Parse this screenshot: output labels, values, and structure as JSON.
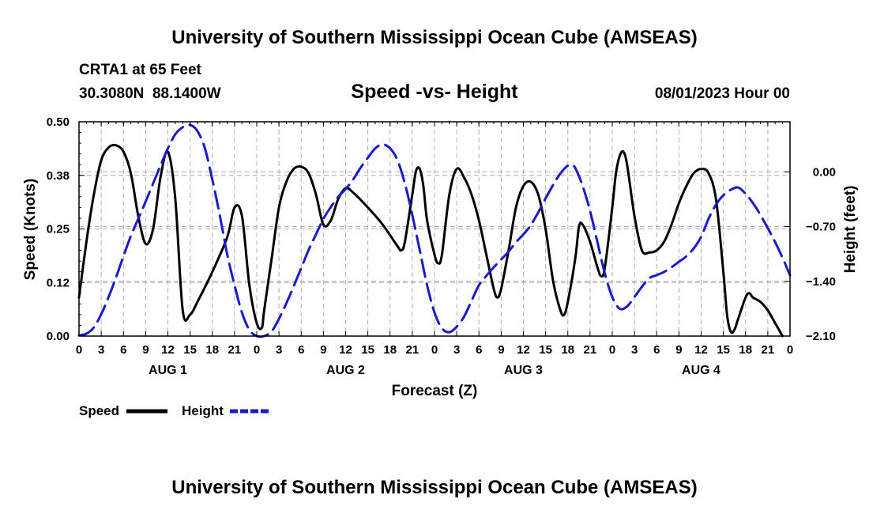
{
  "header": {
    "title_top": "University of Southern Mississippi Ocean Cube (AMSEAS)",
    "title_bottom": "University of Southern Mississippi Ocean Cube (AMSEAS)",
    "station": "CRTA1 at 65 Feet",
    "coords": "30.3080N  88.1400W",
    "chart_title": "Speed -vs- Height",
    "datetime": "08/01/2023 Hour 00"
  },
  "legend": {
    "speed_label": "Speed",
    "height_label": "Height"
  },
  "colors": {
    "speed": "#000000",
    "height": "#1a1acc",
    "grid": "#b0b0b0"
  },
  "chart_data": {
    "type": "line",
    "title": "Speed -vs- Height",
    "xlabel": "Forecast (Z)",
    "ylabel_left": "Speed (Knots)",
    "ylabel_right": "Height (feet)",
    "x_range_hours": [
      0,
      96
    ],
    "x_ticks": [
      0,
      3,
      6,
      9,
      12,
      15,
      18,
      21,
      24,
      27,
      30,
      33,
      36,
      39,
      42,
      45,
      48,
      51,
      54,
      57,
      60,
      63,
      66,
      69,
      72,
      75,
      78,
      81,
      84,
      87,
      90,
      93,
      96
    ],
    "x_tick_labels": [
      "0",
      "3",
      "6",
      "9",
      "12",
      "15",
      "18",
      "21",
      "0",
      "3",
      "6",
      "9",
      "12",
      "15",
      "18",
      "21",
      "0",
      "3",
      "6",
      "9",
      "12",
      "15",
      "18",
      "21",
      "0",
      "3",
      "6",
      "9",
      "12",
      "15",
      "18",
      "21",
      "0"
    ],
    "day_labels": [
      {
        "label": "AUG 1",
        "hour": 12
      },
      {
        "label": "AUG 2",
        "hour": 36
      },
      {
        "label": "AUG 3",
        "hour": 60
      },
      {
        "label": "AUG 4",
        "hour": 84
      }
    ],
    "y_left": {
      "range": [
        0,
        0.5
      ],
      "ticks": [
        0,
        0.125,
        0.25,
        0.375,
        0.5
      ],
      "tick_labels": [
        "0.00",
        "0.12",
        "0.25",
        "0.38",
        "0.50"
      ]
    },
    "y_right": {
      "range": [
        -2.1,
        0.64
      ],
      "ticks": [
        -2.1,
        -1.4,
        -0.7,
        0.0
      ],
      "tick_labels": [
        "−2.10",
        "−1.40",
        "−0.70",
        "0.00"
      ]
    },
    "grid": true,
    "series": [
      {
        "name": "Speed",
        "axis": "left",
        "style": "solid",
        "points": [
          [
            0,
            0.09
          ],
          [
            1,
            0.22
          ],
          [
            2,
            0.33
          ],
          [
            3,
            0.41
          ],
          [
            4,
            0.44
          ],
          [
            5,
            0.445
          ],
          [
            6,
            0.43
          ],
          [
            7,
            0.38
          ],
          [
            8,
            0.28
          ],
          [
            9,
            0.215
          ],
          [
            10,
            0.25
          ],
          [
            11,
            0.37
          ],
          [
            12,
            0.43
          ],
          [
            13,
            0.32
          ],
          [
            14,
            0.06
          ],
          [
            15,
            0.05
          ],
          [
            16,
            0.08
          ],
          [
            18,
            0.15
          ],
          [
            20,
            0.23
          ],
          [
            21,
            0.3
          ],
          [
            22,
            0.28
          ],
          [
            23,
            0.12
          ],
          [
            24,
            0.03
          ],
          [
            24.7,
            0.02
          ],
          [
            25,
            0.06
          ],
          [
            26,
            0.18
          ],
          [
            27,
            0.3
          ],
          [
            28,
            0.36
          ],
          [
            29,
            0.39
          ],
          [
            30,
            0.395
          ],
          [
            31,
            0.38
          ],
          [
            32,
            0.33
          ],
          [
            33,
            0.26
          ],
          [
            34,
            0.27
          ],
          [
            35,
            0.32
          ],
          [
            36,
            0.345
          ],
          [
            37,
            0.335
          ],
          [
            39,
            0.3
          ],
          [
            41,
            0.26
          ],
          [
            43,
            0.21
          ],
          [
            43.5,
            0.2
          ],
          [
            44,
            0.22
          ],
          [
            45,
            0.33
          ],
          [
            45.5,
            0.385
          ],
          [
            46,
            0.39
          ],
          [
            46.5,
            0.35
          ],
          [
            47,
            0.27
          ],
          [
            48,
            0.19
          ],
          [
            48.5,
            0.17
          ],
          [
            49,
            0.19
          ],
          [
            50,
            0.33
          ],
          [
            51,
            0.39
          ],
          [
            52,
            0.37
          ],
          [
            53,
            0.33
          ],
          [
            54,
            0.27
          ],
          [
            55,
            0.19
          ],
          [
            56,
            0.11
          ],
          [
            56.5,
            0.09
          ],
          [
            57,
            0.11
          ],
          [
            58,
            0.2
          ],
          [
            59,
            0.3
          ],
          [
            60,
            0.35
          ],
          [
            61,
            0.36
          ],
          [
            62,
            0.33
          ],
          [
            63,
            0.25
          ],
          [
            64,
            0.13
          ],
          [
            65,
            0.06
          ],
          [
            65.5,
            0.05
          ],
          [
            66,
            0.08
          ],
          [
            67,
            0.18
          ],
          [
            67.5,
            0.255
          ],
          [
            68,
            0.26
          ],
          [
            69,
            0.22
          ],
          [
            70,
            0.16
          ],
          [
            70.5,
            0.14
          ],
          [
            71,
            0.16
          ],
          [
            72,
            0.3
          ],
          [
            72.5,
            0.38
          ],
          [
            73,
            0.42
          ],
          [
            73.5,
            0.43
          ],
          [
            74,
            0.4
          ],
          [
            75,
            0.28
          ],
          [
            76,
            0.2
          ],
          [
            77,
            0.195
          ],
          [
            78,
            0.2
          ],
          [
            79,
            0.22
          ],
          [
            80,
            0.26
          ],
          [
            81,
            0.31
          ],
          [
            82,
            0.35
          ],
          [
            83,
            0.38
          ],
          [
            84,
            0.39
          ],
          [
            85,
            0.38
          ],
          [
            86,
            0.32
          ],
          [
            87,
            0.15
          ],
          [
            87.5,
            0.05
          ],
          [
            88,
            0.01
          ],
          [
            88.5,
            0.015
          ],
          [
            89,
            0.04
          ],
          [
            90,
            0.09
          ],
          [
            90.5,
            0.1
          ],
          [
            91,
            0.09
          ],
          [
            92,
            0.08
          ],
          [
            93,
            0.06
          ],
          [
            94,
            0.03
          ],
          [
            95,
            0.0
          ]
        ]
      },
      {
        "name": "Height",
        "axis": "right",
        "style": "dashed",
        "points": [
          [
            0,
            -2.09
          ],
          [
            1,
            -2.07
          ],
          [
            2,
            -1.99
          ],
          [
            3,
            -1.82
          ],
          [
            4,
            -1.6
          ],
          [
            5,
            -1.35
          ],
          [
            6,
            -1.08
          ],
          [
            7,
            -0.82
          ],
          [
            8,
            -0.6
          ],
          [
            9,
            -0.38
          ],
          [
            10,
            -0.15
          ],
          [
            11,
            0.08
          ],
          [
            12,
            0.3
          ],
          [
            13,
            0.48
          ],
          [
            14,
            0.57
          ],
          [
            15,
            0.6
          ],
          [
            16,
            0.52
          ],
          [
            17,
            0.3
          ],
          [
            18,
            -0.1
          ],
          [
            19,
            -0.55
          ],
          [
            20,
            -1.05
          ],
          [
            21,
            -1.45
          ],
          [
            22,
            -1.8
          ],
          [
            23,
            -2.02
          ],
          [
            24,
            -2.1
          ],
          [
            25,
            -2.1
          ],
          [
            26,
            -2.04
          ],
          [
            27,
            -1.88
          ],
          [
            28,
            -1.68
          ],
          [
            29,
            -1.46
          ],
          [
            30,
            -1.23
          ],
          [
            31,
            -1.0
          ],
          [
            32,
            -0.8
          ],
          [
            33,
            -0.6
          ],
          [
            34,
            -0.45
          ],
          [
            35,
            -0.32
          ],
          [
            36,
            -0.22
          ],
          [
            37,
            -0.1
          ],
          [
            38,
            0.05
          ],
          [
            39,
            0.18
          ],
          [
            40,
            0.3
          ],
          [
            41,
            0.35
          ],
          [
            42,
            0.3
          ],
          [
            43,
            0.15
          ],
          [
            44,
            -0.15
          ],
          [
            45,
            -0.55
          ],
          [
            46,
            -1.0
          ],
          [
            47,
            -1.45
          ],
          [
            48,
            -1.8
          ],
          [
            49,
            -2.0
          ],
          [
            50,
            -2.05
          ],
          [
            51,
            -1.98
          ],
          [
            52,
            -1.85
          ],
          [
            53,
            -1.65
          ],
          [
            54,
            -1.45
          ],
          [
            55,
            -1.33
          ],
          [
            56,
            -1.22
          ],
          [
            57,
            -1.12
          ],
          [
            58,
            -1.02
          ],
          [
            59,
            -0.9
          ],
          [
            60,
            -0.8
          ],
          [
            61,
            -0.68
          ],
          [
            62,
            -0.52
          ],
          [
            63,
            -0.34
          ],
          [
            64,
            -0.17
          ],
          [
            65,
            -0.02
          ],
          [
            66,
            0.08
          ],
          [
            66.5,
            0.09
          ],
          [
            67,
            0.05
          ],
          [
            68,
            -0.18
          ],
          [
            69,
            -0.5
          ],
          [
            70,
            -0.9
          ],
          [
            71,
            -1.3
          ],
          [
            72,
            -1.6
          ],
          [
            73,
            -1.75
          ],
          [
            74,
            -1.72
          ],
          [
            75,
            -1.6
          ],
          [
            76,
            -1.47
          ],
          [
            77,
            -1.36
          ],
          [
            78,
            -1.32
          ],
          [
            79,
            -1.28
          ],
          [
            80,
            -1.22
          ],
          [
            81,
            -1.15
          ],
          [
            82,
            -1.08
          ],
          [
            83,
            -0.98
          ],
          [
            84,
            -0.83
          ],
          [
            85,
            -0.6
          ],
          [
            86,
            -0.42
          ],
          [
            87,
            -0.3
          ],
          [
            88,
            -0.23
          ],
          [
            89,
            -0.2
          ],
          [
            90,
            -0.28
          ],
          [
            91,
            -0.4
          ],
          [
            92,
            -0.55
          ],
          [
            93,
            -0.72
          ],
          [
            94,
            -0.9
          ],
          [
            95,
            -1.1
          ],
          [
            96,
            -1.32
          ]
        ]
      }
    ]
  }
}
